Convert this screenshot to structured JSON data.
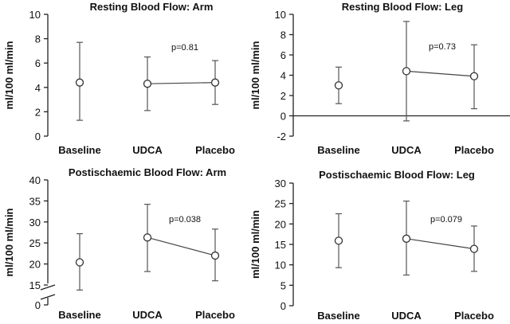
{
  "chart_data": [
    {
      "type": "scatter",
      "title": "Resting Blood Flow: Arm",
      "ylabel": "ml/100 ml/min",
      "categories": [
        "Baseline",
        "UDCA",
        "Placebo"
      ],
      "yticks": [
        0,
        2,
        4,
        6,
        8,
        10
      ],
      "ylim": [
        0,
        10
      ],
      "mean": [
        4.4,
        4.3,
        4.4
      ],
      "lower": [
        1.3,
        2.1,
        2.6
      ],
      "upper": [
        7.7,
        6.5,
        6.2
      ],
      "connected": [
        1,
        2
      ],
      "annotation": "p=0.81"
    },
    {
      "type": "scatter",
      "title": "Resting Blood Flow: Leg",
      "ylabel": "ml/100 ml/min",
      "categories": [
        "Baseline",
        "UDCA",
        "Placebo"
      ],
      "yticks": [
        -2,
        0,
        2,
        4,
        6,
        8,
        10
      ],
      "ylim": [
        -2,
        10
      ],
      "zero_line": true,
      "mean": [
        3.0,
        4.4,
        3.9
      ],
      "lower": [
        1.2,
        -0.5,
        0.7
      ],
      "upper": [
        4.8,
        9.3,
        7.0
      ],
      "connected": [
        1,
        2
      ],
      "annotation": "p=0.73"
    },
    {
      "type": "scatter",
      "title": "Postischaemic Blood Flow: Arm",
      "ylabel": "ml/100 ml/min",
      "categories": [
        "Baseline",
        "UDCA",
        "Placebo"
      ],
      "yticks": [
        0,
        15,
        20,
        25,
        30,
        35,
        40
      ],
      "axis_break": true,
      "ylim": [
        0,
        40
      ],
      "mean": [
        20.4,
        26.3,
        22.0
      ],
      "lower": [
        13.8,
        18.2,
        16.0
      ],
      "upper": [
        27.2,
        34.2,
        28.3
      ],
      "connected": [
        1,
        2
      ],
      "annotation": "p=0.038"
    },
    {
      "type": "scatter",
      "title": "Postischaemic Blood Flow: Leg",
      "ylabel": "ml/100 ml/min",
      "categories": [
        "Baseline",
        "UDCA",
        "Placebo"
      ],
      "yticks": [
        0,
        5,
        10,
        15,
        20,
        25,
        30
      ],
      "ylim": [
        0,
        30
      ],
      "mean": [
        15.9,
        16.4,
        13.9
      ],
      "lower": [
        9.3,
        7.5,
        8.4
      ],
      "upper": [
        22.5,
        25.6,
        19.5
      ],
      "connected": [
        1,
        2
      ],
      "annotation": "p=0.079"
    }
  ]
}
